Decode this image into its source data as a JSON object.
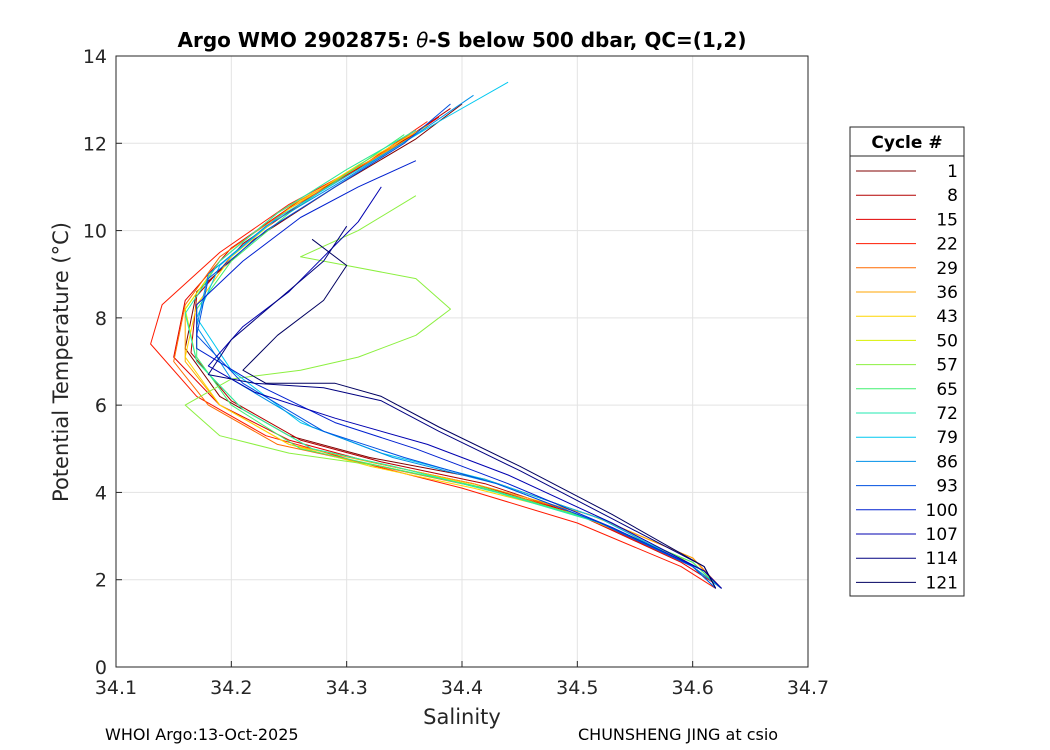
{
  "chart_data": {
    "type": "line",
    "title_prefix": "Argo WMO 2902875: ",
    "title_symbol": "θ",
    "title_suffix": "-S below 500 dbar,  QC=(1,2)",
    "xlabel": "Salinity",
    "ylabel": "Potential Temperature (°C)",
    "xlim": [
      34.1,
      34.7
    ],
    "ylim": [
      0,
      14
    ],
    "xticks": [
      "34.1",
      "34.2",
      "34.3",
      "34.4",
      "34.5",
      "34.6",
      "34.7"
    ],
    "yticks": [
      "0",
      "2",
      "4",
      "6",
      "8",
      "10",
      "12",
      "14"
    ],
    "grid": true,
    "legend": {
      "title": "Cycle #",
      "placement": "right",
      "entries": [
        {
          "label": "1",
          "color": "#800000"
        },
        {
          "label": "8",
          "color": "#b30000"
        },
        {
          "label": "15",
          "color": "#e00000"
        },
        {
          "label": "22",
          "color": "#ff1a00"
        },
        {
          "label": "29",
          "color": "#ff6a00"
        },
        {
          "label": "36",
          "color": "#ffa500"
        },
        {
          "label": "43",
          "color": "#ffd500"
        },
        {
          "label": "50",
          "color": "#d8f000"
        },
        {
          "label": "57",
          "color": "#8cf040"
        },
        {
          "label": "65",
          "color": "#40f070"
        },
        {
          "label": "72",
          "color": "#20e8b0"
        },
        {
          "label": "79",
          "color": "#00c8f0"
        },
        {
          "label": "86",
          "color": "#0090e8"
        },
        {
          "label": "93",
          "color": "#0050e0"
        },
        {
          "label": "100",
          "color": "#0020d0"
        },
        {
          "label": "107",
          "color": "#0000b0"
        },
        {
          "label": "114",
          "color": "#000080"
        },
        {
          "label": "121",
          "color": "#000060"
        }
      ]
    },
    "series": [
      {
        "name": "1",
        "x": [
          34.4,
          34.36,
          34.29,
          34.22,
          34.17,
          34.16,
          34.19,
          34.25,
          34.32,
          34.42,
          34.52,
          34.6,
          34.625
        ],
        "y": [
          12.9,
          12.1,
          11.0,
          9.8,
          8.6,
          7.3,
          6.2,
          5.3,
          4.8,
          4.3,
          3.4,
          2.3,
          1.8
        ]
      },
      {
        "name": "8",
        "x": [
          34.39,
          34.34,
          34.27,
          34.21,
          34.17,
          34.165,
          34.2,
          34.26,
          34.33,
          34.42,
          34.51,
          34.6,
          34.625
        ],
        "y": [
          12.8,
          11.9,
          10.8,
          9.7,
          8.5,
          7.2,
          6.1,
          5.2,
          4.7,
          4.2,
          3.4,
          2.3,
          1.8
        ]
      },
      {
        "name": "15",
        "x": [
          34.38,
          34.33,
          34.26,
          34.2,
          34.16,
          34.15,
          34.19,
          34.25,
          34.32,
          34.41,
          34.5,
          34.59,
          34.62
        ],
        "y": [
          12.6,
          11.7,
          10.7,
          9.6,
          8.4,
          7.1,
          6.0,
          5.2,
          4.7,
          4.2,
          3.5,
          2.4,
          1.9
        ]
      },
      {
        "name": "22",
        "x": [
          34.37,
          34.32,
          34.25,
          34.19,
          34.14,
          34.13,
          34.17,
          34.23,
          34.31,
          34.4,
          34.5,
          34.59,
          34.62
        ],
        "y": [
          12.5,
          11.6,
          10.6,
          9.5,
          8.3,
          7.4,
          6.2,
          5.3,
          4.7,
          4.1,
          3.3,
          2.3,
          1.8
        ]
      },
      {
        "name": "29",
        "x": [
          34.36,
          34.31,
          34.25,
          34.19,
          34.16,
          34.15,
          34.18,
          34.24,
          34.31,
          34.4,
          34.51,
          34.6,
          34.625
        ],
        "y": [
          12.3,
          11.4,
          10.5,
          9.4,
          8.3,
          7.0,
          6.0,
          5.1,
          4.7,
          4.2,
          3.5,
          2.5,
          1.8
        ]
      },
      {
        "name": "36",
        "x": [
          34.36,
          34.3,
          34.24,
          34.19,
          34.16,
          34.16,
          34.19,
          34.25,
          34.32,
          34.41,
          34.51,
          34.6,
          34.62
        ],
        "y": [
          12.2,
          11.3,
          10.4,
          9.3,
          8.2,
          7.0,
          6.0,
          5.1,
          4.7,
          4.2,
          3.5,
          2.5,
          1.9
        ]
      },
      {
        "name": "43",
        "x": [
          34.37,
          34.31,
          34.25,
          34.2,
          34.17,
          34.16,
          34.19,
          34.25,
          34.32,
          34.41,
          34.5,
          34.59,
          34.62
        ],
        "y": [
          12.4,
          11.5,
          10.5,
          9.4,
          8.3,
          7.1,
          6.0,
          5.1,
          4.6,
          4.1,
          3.5,
          2.5,
          1.9
        ]
      },
      {
        "name": "50",
        "x": [
          34.36,
          34.3,
          34.24,
          34.19,
          34.16,
          34.17,
          34.21,
          34.27,
          34.34,
          34.42,
          34.51,
          34.6,
          34.62
        ],
        "y": [
          12.3,
          11.4,
          10.4,
          9.3,
          8.2,
          7.0,
          5.9,
          5.0,
          4.6,
          4.1,
          3.4,
          2.4,
          1.9
        ]
      },
      {
        "name": "57",
        "x": [
          34.36,
          34.31,
          34.26,
          34.3,
          34.36,
          34.39,
          34.36,
          34.31,
          34.26,
          34.2,
          34.16,
          34.19,
          34.25,
          34.33,
          34.42,
          34.51,
          34.6,
          34.62
        ],
        "y": [
          10.8,
          10.0,
          9.4,
          9.2,
          8.9,
          8.2,
          7.6,
          7.1,
          6.8,
          6.6,
          6.0,
          5.3,
          4.9,
          4.6,
          4.1,
          3.4,
          2.4,
          1.9
        ]
      },
      {
        "name": "65",
        "x": [
          34.35,
          34.3,
          34.25,
          34.2,
          34.17,
          34.17,
          34.2,
          34.26,
          34.33,
          34.42,
          34.51,
          34.6,
          34.62
        ],
        "y": [
          12.2,
          11.3,
          10.4,
          9.3,
          8.2,
          7.1,
          6.0,
          5.0,
          4.6,
          4.1,
          3.4,
          2.4,
          1.9
        ]
      },
      {
        "name": "72",
        "x": [
          34.36,
          34.3,
          34.24,
          34.19,
          34.16,
          34.17,
          34.21,
          34.27,
          34.34,
          34.43,
          34.52,
          34.6,
          34.62
        ],
        "y": [
          12.3,
          11.4,
          10.4,
          9.3,
          8.1,
          7.0,
          5.9,
          5.0,
          4.6,
          4.0,
          3.3,
          2.3,
          1.8
        ]
      },
      {
        "name": "79",
        "x": [
          34.44,
          34.38,
          34.31,
          34.24,
          34.19,
          34.17,
          34.2,
          34.26,
          34.33,
          34.42,
          34.52,
          34.6,
          34.625
        ],
        "y": [
          13.4,
          12.5,
          11.4,
          10.3,
          9.2,
          8.0,
          6.8,
          5.6,
          4.9,
          4.3,
          3.4,
          2.3,
          1.8
        ]
      },
      {
        "name": "86",
        "x": [
          34.41,
          34.36,
          34.3,
          34.23,
          34.18,
          34.17,
          34.2,
          34.27,
          34.34,
          34.43,
          34.52,
          34.6,
          34.625
        ],
        "y": [
          13.1,
          12.2,
          11.2,
          10.1,
          9.0,
          7.8,
          6.6,
          5.5,
          4.8,
          4.2,
          3.3,
          2.3,
          1.8
        ]
      },
      {
        "name": "93",
        "x": [
          34.39,
          34.35,
          34.29,
          34.23,
          34.18,
          34.17,
          34.21,
          34.28,
          34.35,
          34.43,
          34.52,
          34.6,
          34.62
        ],
        "y": [
          12.9,
          12.0,
          11.0,
          10.0,
          8.9,
          7.6,
          6.5,
          5.4,
          4.8,
          4.2,
          3.3,
          2.3,
          1.8
        ]
      },
      {
        "name": "100",
        "x": [
          34.36,
          34.31,
          34.26,
          34.21,
          34.17,
          34.17,
          34.22,
          34.29,
          34.36,
          34.44,
          34.53,
          34.61,
          34.625
        ],
        "y": [
          11.6,
          11.0,
          10.3,
          9.3,
          8.3,
          7.3,
          6.5,
          5.6,
          5.0,
          4.2,
          3.2,
          2.2,
          1.8
        ]
      },
      {
        "name": "107",
        "x": [
          34.33,
          34.31,
          34.28,
          34.25,
          34.21,
          34.18,
          34.22,
          34.29,
          34.37,
          34.44,
          34.53,
          34.61,
          34.625
        ],
        "y": [
          11.0,
          10.2,
          9.4,
          8.6,
          7.8,
          6.9,
          6.3,
          5.7,
          5.1,
          4.4,
          3.3,
          2.2,
          1.8
        ]
      },
      {
        "name": "114",
        "x": [
          34.3,
          34.28,
          34.24,
          34.2,
          34.18,
          34.22,
          34.28,
          34.33,
          34.38,
          34.45,
          34.53,
          34.61,
          34.62
        ],
        "y": [
          10.1,
          9.3,
          8.4,
          7.5,
          6.7,
          6.5,
          6.4,
          6.1,
          5.4,
          4.5,
          3.4,
          2.3,
          1.8
        ]
      },
      {
        "name": "121",
        "x": [
          34.27,
          34.3,
          34.28,
          34.24,
          34.21,
          34.23,
          34.29,
          34.33,
          34.38,
          34.45,
          34.53,
          34.61,
          34.62
        ],
        "y": [
          9.8,
          9.2,
          8.4,
          7.6,
          6.8,
          6.5,
          6.5,
          6.2,
          5.5,
          4.6,
          3.5,
          2.3,
          1.8
        ]
      }
    ]
  },
  "footer": {
    "left": "WHOI Argo:13-Oct-2025",
    "right": "CHUNSHENG JING at csio"
  }
}
